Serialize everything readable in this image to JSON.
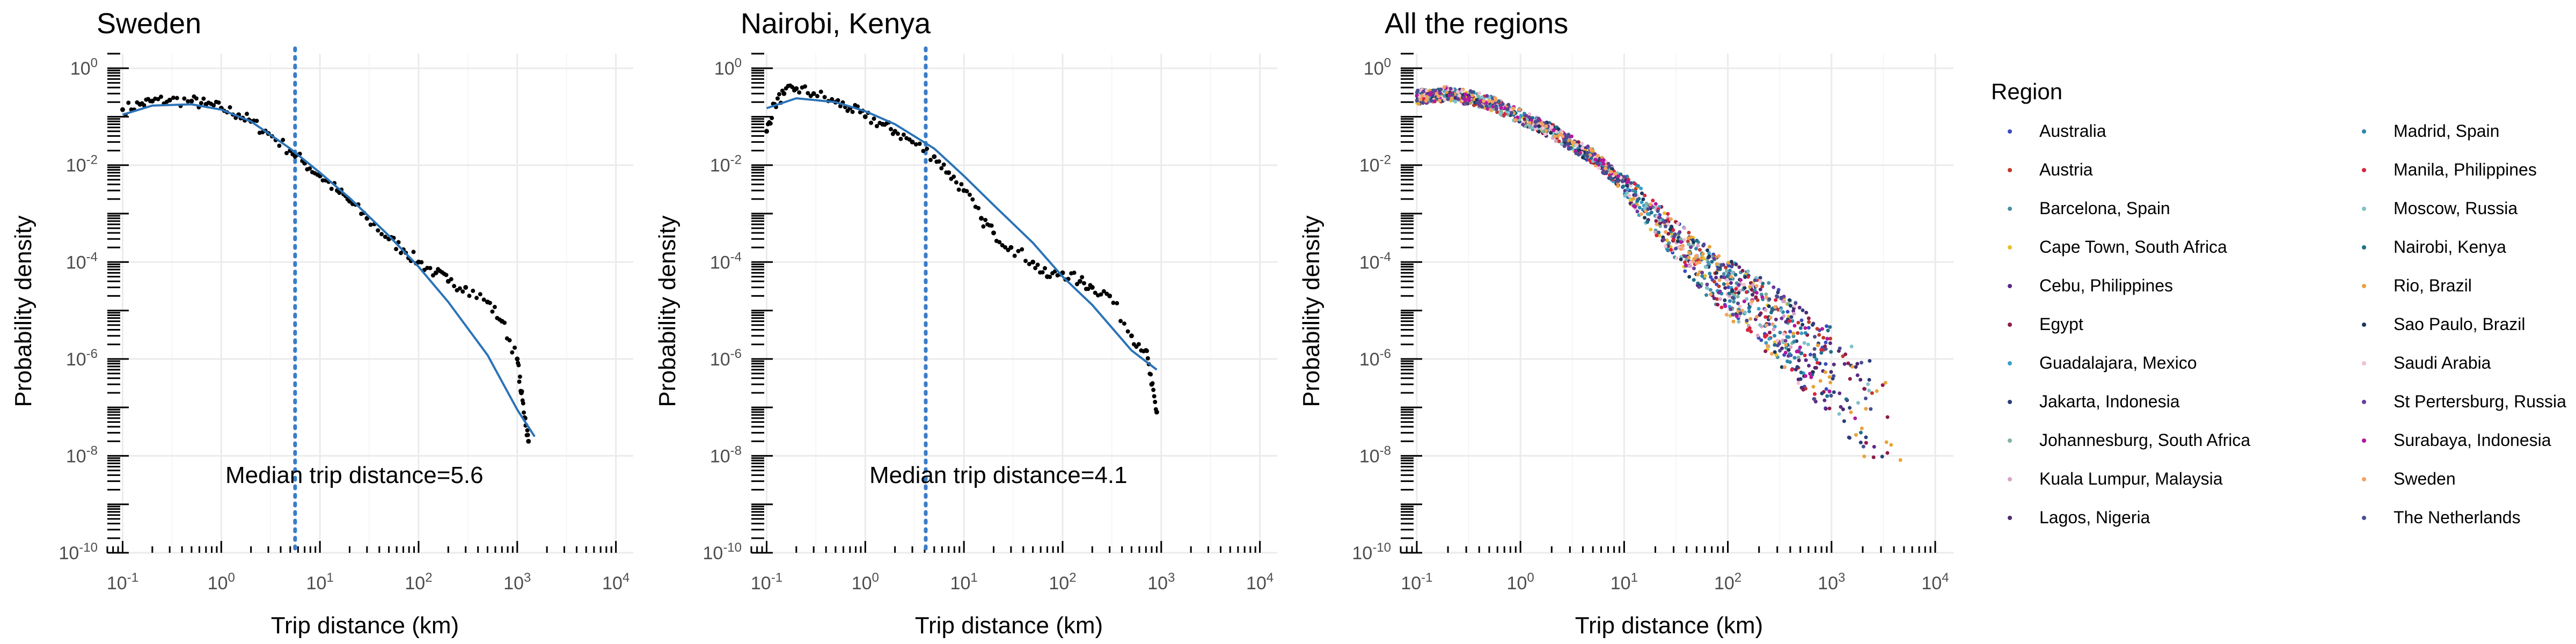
{
  "chart_data": [
    {
      "type": "scatter",
      "title": "Sweden",
      "xlabel": "Trip distance (km)",
      "ylabel": "Probability density",
      "xscale": "log",
      "yscale": "log",
      "xlim": [
        0.07,
        15000
      ],
      "ylim": [
        1e-10,
        2
      ],
      "x_ticks": [
        "10^-1",
        "10^0",
        "10^1",
        "10^2",
        "10^3",
        "10^4"
      ],
      "y_ticks": [
        "10^-10",
        "10^-8",
        "10^-6",
        "10^-4",
        "10^-2",
        "10^0"
      ],
      "median_distance_km": 5.6,
      "annotation": "Median trip distance=5.6",
      "empirical": {
        "x": [
          0.1,
          0.15,
          0.2,
          0.3,
          0.5,
          0.7,
          1,
          1.5,
          2,
          3,
          5,
          7,
          10,
          15,
          20,
          30,
          50,
          70,
          100,
          150,
          200,
          300,
          500,
          700,
          1000,
          1100,
          1200,
          1300
        ],
        "y": [
          0.14,
          0.18,
          0.21,
          0.22,
          0.21,
          0.18,
          0.15,
          0.11,
          0.08,
          0.045,
          0.02,
          0.011,
          0.006,
          0.003,
          0.0018,
          0.0008,
          0.0003,
          0.00018,
          0.0001,
          6e-05,
          4e-05,
          3e-05,
          1.5e-05,
          6e-06,
          1e-06,
          2e-07,
          6e-08,
          2e-08
        ]
      },
      "fit": {
        "x": [
          0.1,
          0.2,
          0.5,
          1,
          2,
          5,
          10,
          20,
          50,
          100,
          200,
          500,
          1000,
          1500
        ],
        "y": [
          0.11,
          0.17,
          0.18,
          0.14,
          0.08,
          0.022,
          0.007,
          0.0021,
          0.00035,
          8e-05,
          1.5e-05,
          1.2e-06,
          9e-08,
          2.5e-08
        ]
      }
    },
    {
      "type": "scatter",
      "title": "Nairobi, Kenya",
      "xlabel": "Trip distance (km)",
      "ylabel": "Probability density",
      "xscale": "log",
      "yscale": "log",
      "xlim": [
        0.07,
        15000
      ],
      "ylim": [
        1e-10,
        2
      ],
      "x_ticks": [
        "10^-1",
        "10^0",
        "10^1",
        "10^2",
        "10^3",
        "10^4"
      ],
      "y_ticks": [
        "10^-10",
        "10^-8",
        "10^-6",
        "10^-4",
        "10^-2",
        "10^0"
      ],
      "median_distance_km": 4.1,
      "annotation": "Median trip distance=4.1",
      "empirical": {
        "x": [
          0.1,
          0.12,
          0.15,
          0.2,
          0.3,
          0.5,
          0.7,
          1,
          1.5,
          2,
          3,
          5,
          7,
          10,
          15,
          20,
          30,
          50,
          70,
          100,
          150,
          200,
          300,
          500,
          700,
          800,
          900
        ],
        "y": [
          0.05,
          0.18,
          0.3,
          0.38,
          0.3,
          0.2,
          0.15,
          0.1,
          0.07,
          0.05,
          0.03,
          0.015,
          0.007,
          0.003,
          0.0008,
          0.0004,
          0.0002,
          0.0001,
          5e-05,
          6e-05,
          4e-05,
          3e-05,
          2e-05,
          3e-06,
          1.5e-06,
          3e-07,
          8e-08
        ]
      },
      "fit": {
        "x": [
          0.1,
          0.2,
          0.5,
          1,
          2,
          5,
          10,
          20,
          50,
          100,
          200,
          500,
          900
        ],
        "y": [
          0.15,
          0.24,
          0.2,
          0.13,
          0.07,
          0.022,
          0.006,
          0.0015,
          0.00025,
          5e-05,
          1.3e-05,
          1.5e-06,
          6e-07
        ]
      }
    },
    {
      "type": "scatter",
      "title": "All the regions",
      "xlabel": "Trip distance (km)",
      "ylabel": "Probability density",
      "xscale": "log",
      "yscale": "log",
      "xlim": [
        0.07,
        15000
      ],
      "ylim": [
        1e-10,
        2
      ],
      "x_ticks": [
        "10^-1",
        "10^0",
        "10^1",
        "10^2",
        "10^3",
        "10^4"
      ],
      "y_ticks": [
        "10^-10",
        "10^-8",
        "10^-6",
        "10^-4",
        "10^-2",
        "10^0"
      ],
      "legend": {
        "title": "Region",
        "position": "right",
        "entries": [
          {
            "name": "Australia",
            "color": "#3b4cc0"
          },
          {
            "name": "Austria",
            "color": "#c0392b"
          },
          {
            "name": "Barcelona, Spain",
            "color": "#4a90a4"
          },
          {
            "name": "Cape Town, South Africa",
            "color": "#e6c229"
          },
          {
            "name": "Cebu, Philippines",
            "color": "#5b2a86"
          },
          {
            "name": "Egypt",
            "color": "#8e1b4a"
          },
          {
            "name": "Guadalajara, Mexico",
            "color": "#3aa0c8"
          },
          {
            "name": "Jakarta, Indonesia",
            "color": "#2c3e7a"
          },
          {
            "name": "Johannesburg, South Africa",
            "color": "#7fb3a4"
          },
          {
            "name": "Kuala Lumpur, Malaysia",
            "color": "#d9a3c6"
          },
          {
            "name": "Lagos, Nigeria",
            "color": "#4b2a6e"
          },
          {
            "name": "Madrid, Spain",
            "color": "#2e86ab"
          },
          {
            "name": "Manila, Philippines",
            "color": "#d7263d"
          },
          {
            "name": "Moscow, Russia",
            "color": "#80c1c9"
          },
          {
            "name": "Nairobi, Kenya",
            "color": "#1f6f8b"
          },
          {
            "name": "Rio, Brazil",
            "color": "#e8a33d"
          },
          {
            "name": "Sao Paulo, Brazil",
            "color": "#1b3a5c"
          },
          {
            "name": "Saudi Arabia",
            "color": "#f2c1d1"
          },
          {
            "name": "St Pertersburg, Russia",
            "color": "#6a3d9a"
          },
          {
            "name": "Surabaya, Indonesia",
            "color": "#b5179e"
          },
          {
            "name": "Sweden",
            "color": "#f4a261"
          },
          {
            "name": "The Netherlands",
            "color": "#4a4e8f"
          }
        ]
      }
    }
  ]
}
